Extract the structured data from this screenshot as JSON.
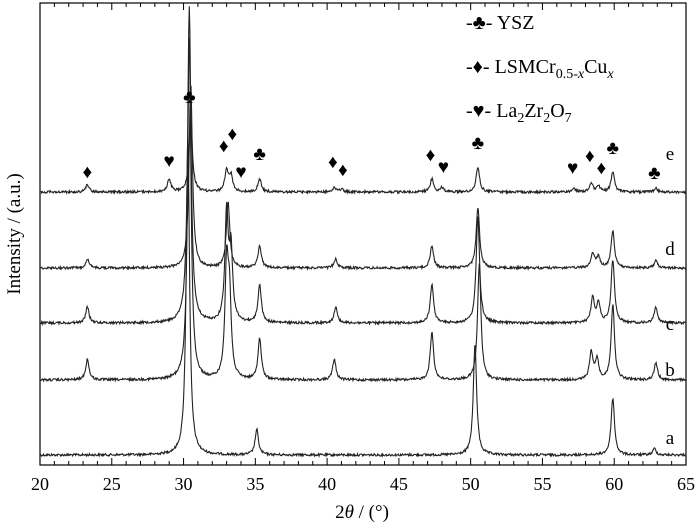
{
  "chart_data": {
    "type": "line",
    "xlabel_parts": [
      "2",
      "θ",
      " / (°)"
    ],
    "ylabel": "Intensity / (a.u.)",
    "xlim": [
      20,
      65
    ],
    "x_ticks": [
      20,
      25,
      30,
      35,
      40,
      45,
      50,
      55,
      60,
      65
    ],
    "grid": false,
    "legend_position": "top-right",
    "legend": [
      {
        "symbol": "♣",
        "symbol_name": "club-icon",
        "label_parts": [
          {
            "t": "YSZ"
          }
        ]
      },
      {
        "symbol": "♦",
        "symbol_name": "diamond-icon",
        "label_parts": [
          {
            "t": "LSMCr"
          },
          {
            "t": "0.5-",
            "sub": true
          },
          {
            "t": "x",
            "sub": true,
            "italic": true
          },
          {
            "t": "Cu"
          },
          {
            "t": "x",
            "sub": true,
            "italic": true
          }
        ]
      },
      {
        "symbol": "♥",
        "symbol_name": "heart-icon",
        "label_parts": [
          {
            "t": "La"
          },
          {
            "t": "2",
            "sub": true
          },
          {
            "t": "Zr"
          },
          {
            "t": "2",
            "sub": true
          },
          {
            "t": "O"
          },
          {
            "t": "7",
            "sub": true
          }
        ]
      }
    ],
    "series": [
      {
        "name": "a",
        "peaks": [
          [
            30.3,
            1.0
          ],
          [
            35.1,
            0.08
          ],
          [
            50.3,
            0.35
          ],
          [
            59.9,
            0.18
          ],
          [
            62.8,
            0.02
          ]
        ]
      },
      {
        "name": "b",
        "peaks": [
          [
            23.3,
            0.06
          ],
          [
            30.4,
            1.0
          ],
          [
            33.0,
            0.32
          ],
          [
            33.2,
            0.22
          ],
          [
            35.3,
            0.12
          ],
          [
            40.5,
            0.06
          ],
          [
            47.3,
            0.14
          ],
          [
            50.6,
            0.34
          ],
          [
            58.4,
            0.08
          ],
          [
            58.8,
            0.06
          ],
          [
            59.9,
            0.22
          ],
          [
            62.9,
            0.05
          ]
        ]
      },
      {
        "name": "c",
        "peaks": [
          [
            23.3,
            0.05
          ],
          [
            30.4,
            1.0
          ],
          [
            33.0,
            0.34
          ],
          [
            33.3,
            0.22
          ],
          [
            35.3,
            0.12
          ],
          [
            40.6,
            0.05
          ],
          [
            47.3,
            0.12
          ],
          [
            50.5,
            0.34
          ],
          [
            58.5,
            0.08
          ],
          [
            58.9,
            0.06
          ],
          [
            59.9,
            0.2
          ],
          [
            62.9,
            0.05
          ]
        ]
      },
      {
        "name": "d",
        "peaks": [
          [
            23.3,
            0.05
          ],
          [
            30.5,
            1.0
          ],
          [
            33.1,
            0.36
          ],
          [
            35.3,
            0.12
          ],
          [
            40.6,
            0.05
          ],
          [
            47.3,
            0.12
          ],
          [
            50.5,
            0.33
          ],
          [
            58.5,
            0.08
          ],
          [
            58.9,
            0.06
          ],
          [
            59.9,
            0.2
          ],
          [
            62.9,
            0.04
          ]
        ]
      },
      {
        "name": "e",
        "peaks": [
          [
            23.3,
            0.1
          ],
          [
            29.0,
            0.18
          ],
          [
            30.5,
            1.0
          ],
          [
            33.0,
            0.3
          ],
          [
            33.3,
            0.22
          ],
          [
            35.3,
            0.18
          ],
          [
            40.5,
            0.06
          ],
          [
            41.0,
            0.04
          ],
          [
            47.3,
            0.18
          ],
          [
            48.0,
            0.06
          ],
          [
            50.5,
            0.35
          ],
          [
            57.2,
            0.05
          ],
          [
            58.4,
            0.12
          ],
          [
            58.9,
            0.08
          ],
          [
            59.9,
            0.28
          ],
          [
            62.9,
            0.05
          ]
        ]
      }
    ],
    "peak_markers": [
      {
        "symbol": "♦",
        "x": 23.3
      },
      {
        "symbol": "♥",
        "x": 29.0
      },
      {
        "symbol": "♣",
        "x": 30.4
      },
      {
        "symbol": "♦",
        "x": 32.8
      },
      {
        "symbol": "♦",
        "x": 33.4
      },
      {
        "symbol": "♥",
        "x": 34.0
      },
      {
        "symbol": "♣",
        "x": 35.3
      },
      {
        "symbol": "♦",
        "x": 40.4
      },
      {
        "symbol": "♦",
        "x": 41.1
      },
      {
        "symbol": "♦",
        "x": 47.2
      },
      {
        "symbol": "♥",
        "x": 48.1
      },
      {
        "symbol": "♣",
        "x": 50.5
      },
      {
        "symbol": "♥",
        "x": 57.1
      },
      {
        "symbol": "♦",
        "x": 58.3
      },
      {
        "symbol": "♦",
        "x": 59.1
      },
      {
        "symbol": "♣",
        "x": 59.9
      },
      {
        "symbol": "♣",
        "x": 62.8
      }
    ]
  }
}
